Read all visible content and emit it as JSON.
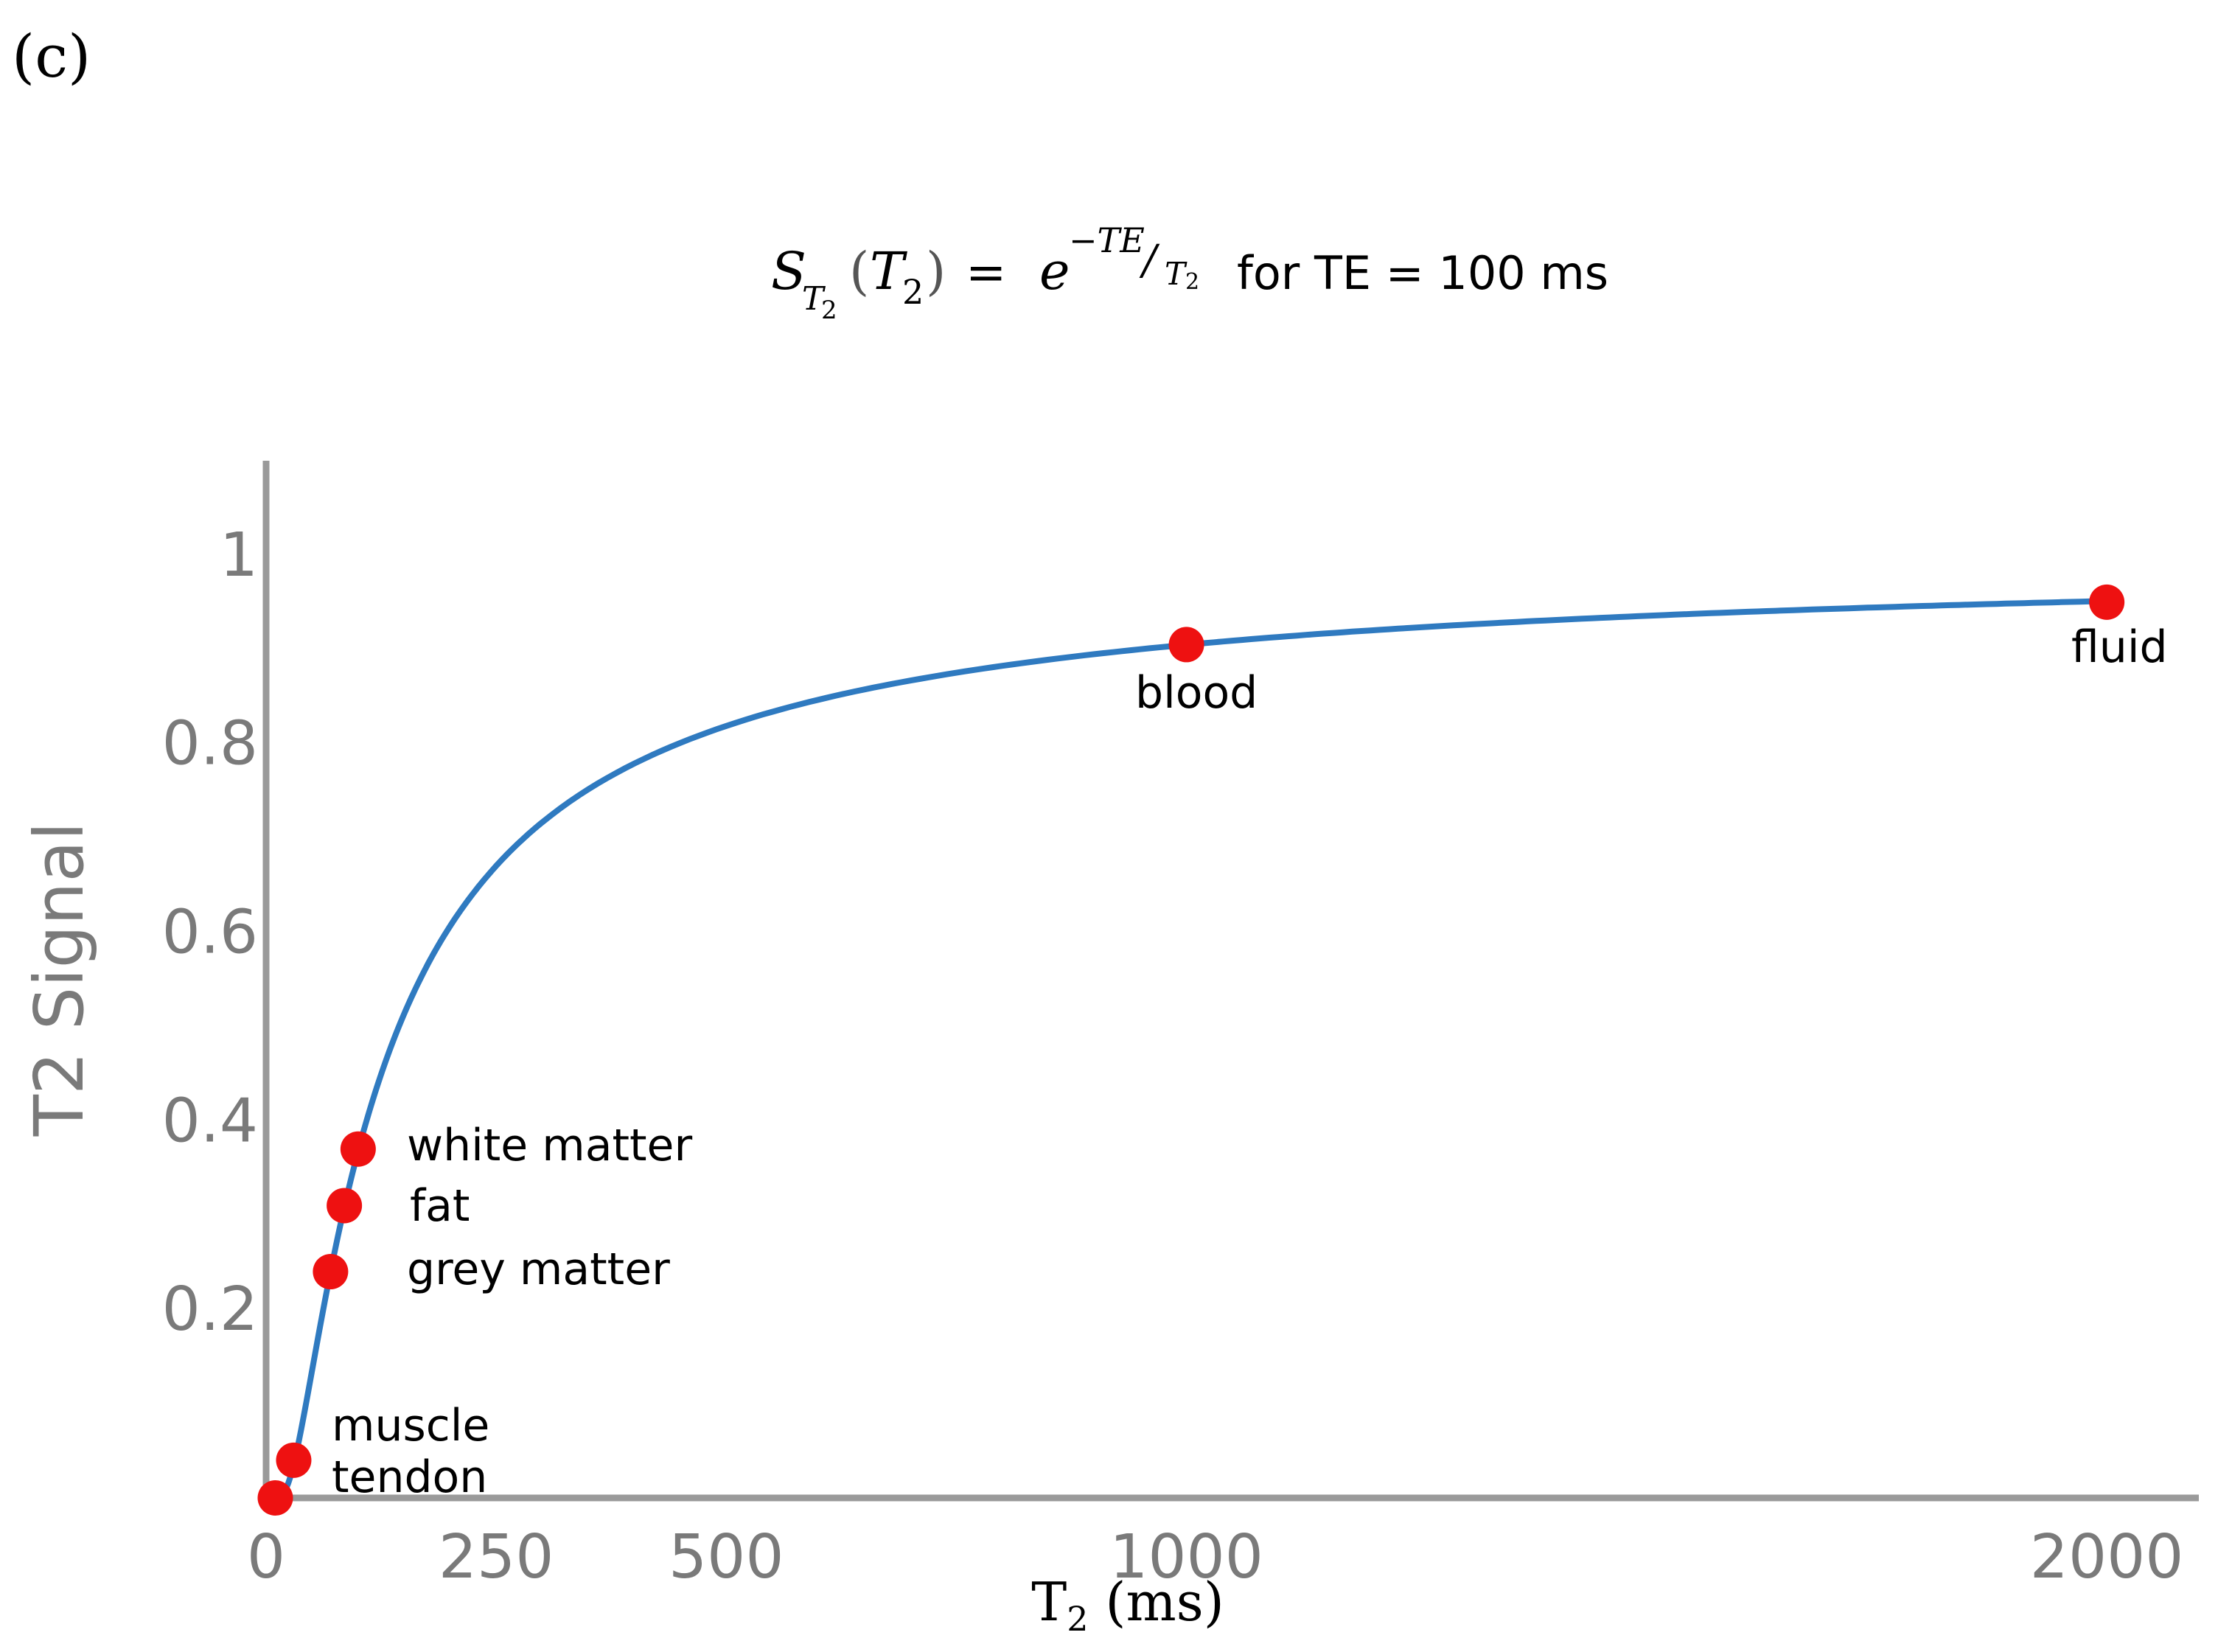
{
  "panel_label": "(c)",
  "formula": {
    "lhs_s": "S",
    "lhs_sub_t": "T",
    "lhs_sub_2": "2",
    "lhs_paren_open": "(",
    "lhs_arg_t": "T",
    "lhs_arg_2": "2",
    "lhs_paren_close": ")",
    "equals": "=",
    "base": "e",
    "exponent": "−TE",
    "slash": "/",
    "denominator_t": "T",
    "denominator_2": "2",
    "suffix": "for TE = 100 ms"
  },
  "chart_data": {
    "type": "line",
    "function": "exp(-100/T2)",
    "te_ms": 100,
    "xlabel_main": "T",
    "xlabel_sub": "2",
    "xlabel_unit": " (ms)",
    "ylabel": "T2 Signal",
    "xlim": [
      0,
      2100
    ],
    "ylim": [
      0,
      1.1
    ],
    "x_ticks": [
      {
        "value": 0,
        "label": "0"
      },
      {
        "value": 250,
        "label": "250"
      },
      {
        "value": 500,
        "label": "500"
      },
      {
        "value": 1000,
        "label": "1000"
      },
      {
        "value": 2000,
        "label": "2000"
      }
    ],
    "y_ticks": [
      {
        "value": 0.2,
        "label": "0.2"
      },
      {
        "value": 0.4,
        "label": "0.4"
      },
      {
        "value": 0.6,
        "label": "0.6"
      },
      {
        "value": 0.8,
        "label": "0.8"
      },
      {
        "value": 1.0,
        "label": "1"
      }
    ],
    "series": [
      {
        "color": "#2f7ac0"
      }
    ],
    "points": [
      {
        "label": "",
        "x": 10,
        "y": 0.0
      },
      {
        "label": "muscle",
        "x": 30,
        "y": 0.04
      },
      {
        "label": "tendon",
        "x": 30,
        "y": 0.04
      },
      {
        "label": "grey matter",
        "x": 70,
        "y": 0.24
      },
      {
        "label": "fat",
        "x": 85,
        "y": 0.31
      },
      {
        "label": "white matter",
        "x": 100,
        "y": 0.37
      },
      {
        "label": "blood",
        "x": 1000,
        "y": 0.905
      },
      {
        "label": "fluid",
        "x": 2000,
        "y": 0.95
      }
    ],
    "point_color": "#ee1111",
    "grid": false
  }
}
